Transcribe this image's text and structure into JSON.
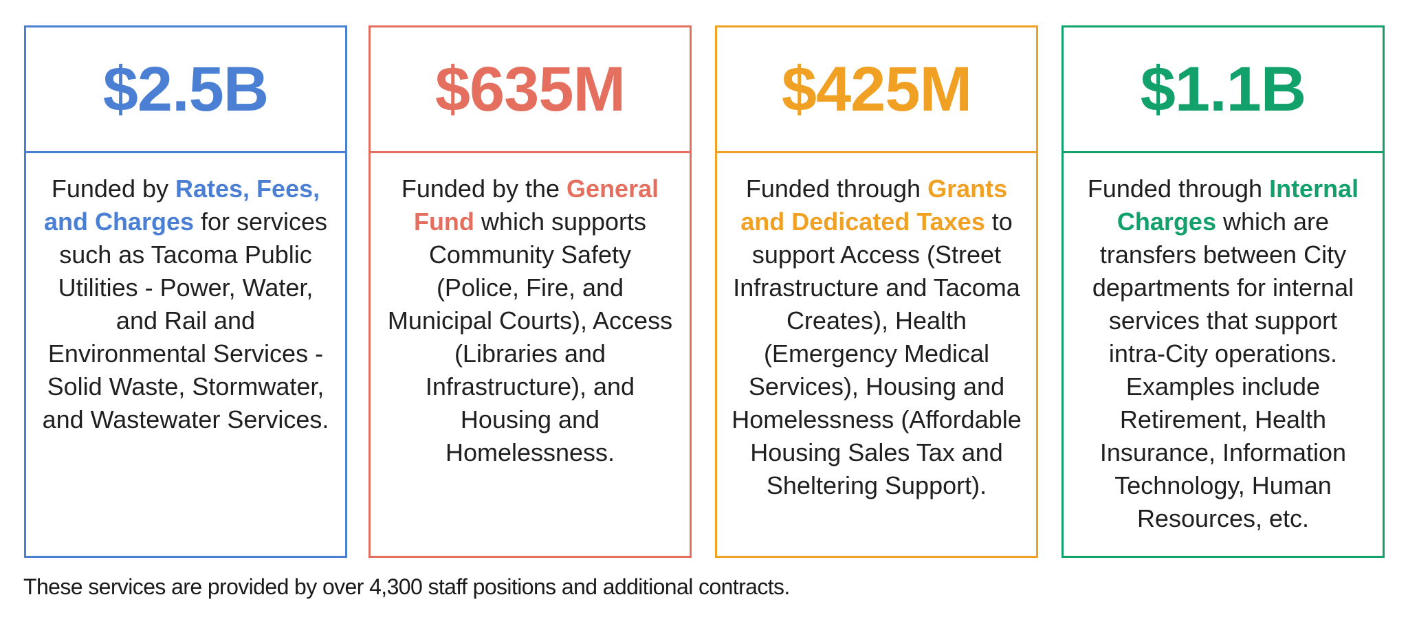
{
  "cards": [
    {
      "amount": "$2.5B",
      "color": "#4a7fd4",
      "pre": "Funded by ",
      "highlight": "Rates, Fees, and Charges",
      "post": " for services such as Tacoma Public Utilities - Power, Water, and Rail and Environmental Services - Solid Waste, Stormwater, and Wastewater Services."
    },
    {
      "amount": "$635M",
      "color": "#e46f5e",
      "pre": "Funded by the ",
      "highlight": "General Fund",
      "post": " which supports Community Safety (Police, Fire, and Municipal Courts), Access (Libraries and Infrastructure), and Housing and Homelessness."
    },
    {
      "amount": "$425M",
      "color": "#f0a023",
      "pre": "Funded through ",
      "highlight": "Grants and Dedicated Taxes",
      "post": " to support Access (Street Infrastructure and Tacoma Creates), Health (Emergency Medical Services), Housing and Homelessness (Affordable Housing Sales Tax and Sheltering Support)."
    },
    {
      "amount": "$1.1B",
      "color": "#12a06b",
      "pre": "Funded through ",
      "highlight": "Internal Charges",
      "post": " which are transfers between City departments for internal services that support intra-City operations. Examples include Retirement, Health Insurance, Information Technology, Human Resources, etc."
    }
  ],
  "footer": "These services are provided by over 4,300 staff positions and additional contracts."
}
